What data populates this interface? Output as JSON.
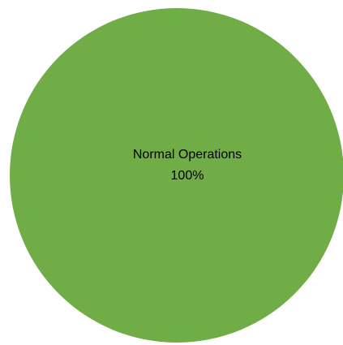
{
  "chart_data": {
    "type": "pie",
    "title": "",
    "slices": [
      {
        "label": "Normal Operations",
        "value": 100,
        "percent_label": "100%",
        "color": "#70AD47"
      }
    ],
    "legend": "none"
  }
}
